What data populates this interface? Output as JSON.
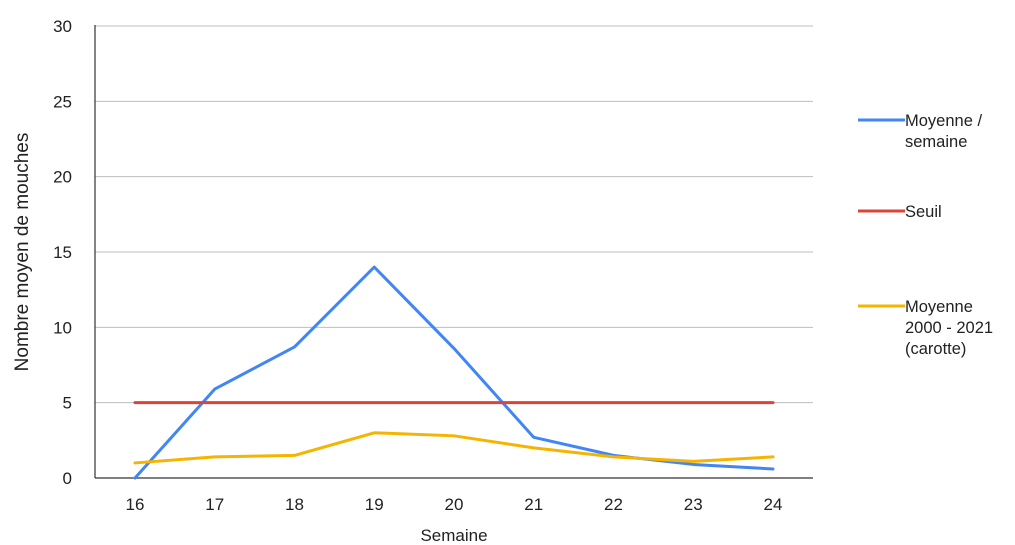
{
  "chart_data": {
    "type": "line",
    "xlabel": "Semaine",
    "ylabel": "Nombre moyen de mouches",
    "ylim": [
      0,
      30
    ],
    "yticks": [
      0,
      5,
      10,
      15,
      20,
      25,
      30
    ],
    "categories": [
      "16",
      "17",
      "18",
      "19",
      "20",
      "21",
      "22",
      "23",
      "24"
    ],
    "grid": true,
    "legend_position": "right",
    "series": [
      {
        "name": "Moyenne / semaine",
        "color": "#4285f4",
        "values": [
          0,
          5.9,
          8.7,
          14.0,
          8.6,
          2.7,
          1.5,
          0.9,
          0.6
        ]
      },
      {
        "name": "Seuil",
        "color": "#db4437",
        "values": [
          5,
          5,
          5,
          5,
          5,
          5,
          5,
          5,
          5
        ]
      },
      {
        "name": "Moyenne 2000 - 2021 (carotte)",
        "color": "#f4b400",
        "values": [
          1.0,
          1.4,
          1.5,
          3.0,
          2.8,
          2.0,
          1.4,
          1.1,
          1.4
        ]
      }
    ],
    "legend_lines": [
      [
        "Moyenne /",
        "semaine"
      ],
      [
        "Seuil"
      ],
      [
        "Moyenne",
        "2000 - 2021",
        "(carotte)"
      ]
    ]
  }
}
